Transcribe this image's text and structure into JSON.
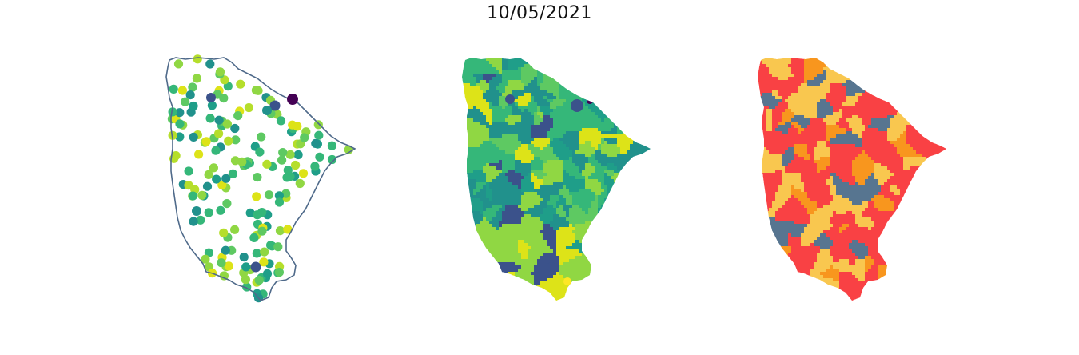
{
  "title": "10/05/2021",
  "colors": {
    "outline": "#4f6a8a",
    "viridis": [
      "#440154",
      "#3b528b",
      "#21918c",
      "#1f9e89",
      "#35b779",
      "#5ec962",
      "#90d743",
      "#b5de2b",
      "#dde318",
      "#fde725"
    ],
    "risk": {
      "red": "#f94144",
      "orange": "#f8961e",
      "yellow": "#f9c74f",
      "slate": "#577590"
    }
  },
  "panels": [
    {
      "kind": "point-map",
      "marker": "circle"
    },
    {
      "kind": "choropleth",
      "palette": "viridis"
    },
    {
      "kind": "choropleth",
      "palette": "risk"
    }
  ]
}
